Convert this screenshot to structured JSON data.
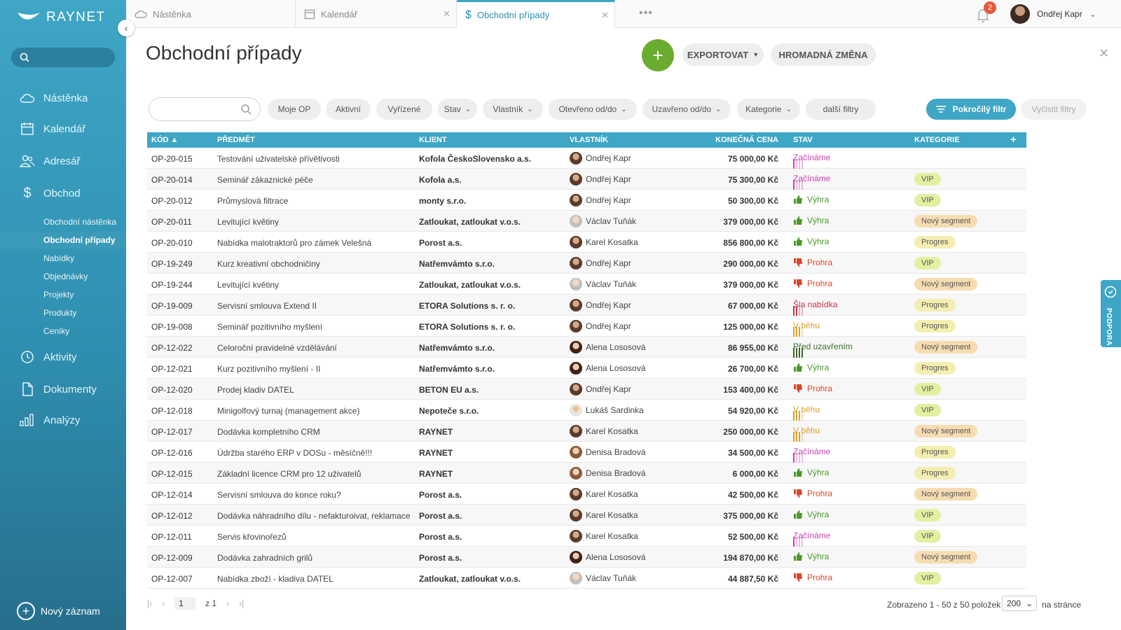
{
  "app": {
    "brand": "RAYNET"
  },
  "sidebar": {
    "main": [
      {
        "label": "Nástěnka",
        "icon": "cloud-icon"
      },
      {
        "label": "Kalendář",
        "icon": "calendar-icon"
      },
      {
        "label": "Adresář",
        "icon": "contacts-icon"
      },
      {
        "label": "Obchod",
        "icon": "dollar-icon"
      }
    ],
    "sub": [
      {
        "label": "Obchodní nástěnka",
        "active": false
      },
      {
        "label": "Obchodní případy",
        "active": true
      },
      {
        "label": "Nabídky",
        "active": false
      },
      {
        "label": "Objednávky",
        "active": false
      },
      {
        "label": "Projekty",
        "active": false
      },
      {
        "label": "Produkty",
        "active": false
      },
      {
        "label": "Ceníky",
        "active": false
      }
    ],
    "main2": [
      {
        "label": "Aktivity",
        "icon": "clock-icon"
      },
      {
        "label": "Dokumenty",
        "icon": "document-icon"
      },
      {
        "label": "Analýzy",
        "icon": "bar-chart-icon"
      }
    ],
    "new_record": "Nový záznam"
  },
  "tabs": [
    {
      "label": "Nástěnka"
    },
    {
      "label": "Kalendář"
    },
    {
      "label": "Obchodní případy",
      "active": true
    }
  ],
  "notifications": {
    "count": "2"
  },
  "user": {
    "name": "Ondřej Kapr"
  },
  "page": {
    "title": "Obchodní případy",
    "export_label": "EXPORTOVAT",
    "bulk_label": "HROMADNÁ ZMĚNA"
  },
  "filters": {
    "search_placeholder": "",
    "chips": [
      "Moje OP",
      "Aktivní",
      "Vyřízené",
      "Stav",
      "Vlastník",
      "Otevřeno od/do",
      "Uzavřeno od/do",
      "Kategorie",
      "další filtry"
    ],
    "advanced": "Pokročilý filtr",
    "clear": "Vyčistit filtry"
  },
  "table": {
    "columns": [
      "KÓD",
      "PŘEDMĚT",
      "KLIENT",
      "VLASTNÍK",
      "KONEČNÁ CENA",
      "STAV",
      "KATEGORIE"
    ],
    "rows": [
      {
        "kod": "OP-20-015",
        "predmet": "Testování uživatelské přívětivosti",
        "klient": "Kofola ČeskoSlovensko a.s.",
        "vlastnik": "Ondřej Kapr",
        "cena": "75 000,00 Kč",
        "stav": "Začínáme",
        "kategorie": ""
      },
      {
        "kod": "OP-20-014",
        "predmet": "Seminář zákaznické péče",
        "klient": "Kofola a.s.",
        "vlastnik": "Ondřej Kapr",
        "cena": "75 300,00 Kč",
        "stav": "Začínáme",
        "kategorie": "VIP"
      },
      {
        "kod": "OP-20-012",
        "predmet": "Průmyslová filtrace",
        "klient": "monty s.r.o.",
        "vlastnik": "Ondřej Kapr",
        "cena": "50 300,00 Kč",
        "stav": "Výhra",
        "kategorie": "VIP"
      },
      {
        "kod": "OP-20-011",
        "predmet": "Levitující květiny",
        "klient": "Zatloukat, zatloukat v.o.s.",
        "vlastnik": "Václav Tuňák",
        "cena": "379 000,00 Kč",
        "stav": "Výhra",
        "kategorie": "Nový segment"
      },
      {
        "kod": "OP-20-010",
        "predmet": "Nabídka malotraktorů pro zámek Velešná",
        "klient": "Porost a.s.",
        "vlastnik": "Karel Kosatka",
        "cena": "856 800,00 Kč",
        "stav": "Výhra",
        "kategorie": "Progres"
      },
      {
        "kod": "OP-19-249",
        "predmet": "Kurz kreativní obchodničiny",
        "klient": "Natřemvámto s.r.o.",
        "vlastnik": "Ondřej Kapr",
        "cena": "290 000,00 Kč",
        "stav": "Prohra",
        "kategorie": "VIP"
      },
      {
        "kod": "OP-19-244",
        "predmet": "Levitující květiny",
        "klient": "Zatloukat, zatloukat v.o.s.",
        "vlastnik": "Václav Tuňák",
        "cena": "379 000,00 Kč",
        "stav": "Prohra",
        "kategorie": "Nový segment"
      },
      {
        "kod": "OP-19-009",
        "predmet": "Servisní smlouva Extend II",
        "klient": "ETORA Solutions s. r. o.",
        "vlastnik": "Ondřej Kapr",
        "cena": "67 000,00 Kč",
        "stav": "Šla nabídka",
        "kategorie": "Progres"
      },
      {
        "kod": "OP-19-008",
        "predmet": "Seminář pozitivního myšlení",
        "klient": "ETORA Solutions s. r. o.",
        "vlastnik": "Ondřej Kapr",
        "cena": "125 000,00 Kč",
        "stav": "V běhu",
        "kategorie": "Progres"
      },
      {
        "kod": "OP-12-022",
        "predmet": "Celoroční pravidelné vzdělávání",
        "klient": "Natřemvámto s.r.o.",
        "vlastnik": "Alena Lososová",
        "cena": "86 955,00 Kč",
        "stav": "Před uzavřením",
        "kategorie": "Nový segment"
      },
      {
        "kod": "OP-12-021",
        "predmet": "Kurz pozitivního myšlení - II",
        "klient": "Natřemvámto s.r.o.",
        "vlastnik": "Alena Lososová",
        "cena": "26 700,00 Kč",
        "stav": "Výhra",
        "kategorie": "Progres"
      },
      {
        "kod": "OP-12-020",
        "predmet": "Prodej kladiv DATEL",
        "klient": "BETON EU a.s.",
        "vlastnik": "Ondřej Kapr",
        "cena": "153 400,00 Kč",
        "stav": "Prohra",
        "kategorie": "VIP"
      },
      {
        "kod": "OP-12-018",
        "predmet": "Minigolfový turnaj (management akce)",
        "klient": "Nepoteče s.r.o.",
        "vlastnik": "Lukáš Sardinka",
        "cena": "54 920,00 Kč",
        "stav": "V běhu",
        "kategorie": "VIP"
      },
      {
        "kod": "OP-12-017",
        "predmet": "Dodávka kompletního CRM",
        "klient": "RAYNET",
        "vlastnik": "Karel Kosatka",
        "cena": "250 000,00 Kč",
        "stav": "V běhu",
        "kategorie": "Nový segment"
      },
      {
        "kod": "OP-12-016",
        "predmet": "Údržba starého ERP v DOSu - měsíčně!!!",
        "klient": "RAYNET",
        "vlastnik": "Denisa Bradová",
        "cena": "34 500,00 Kč",
        "stav": "Začínáme",
        "kategorie": "Progres"
      },
      {
        "kod": "OP-12-015",
        "predmet": "Základní licence CRM pro 12 uživatelů",
        "klient": "RAYNET",
        "vlastnik": "Denisa Bradová",
        "cena": "6 000,00 Kč",
        "stav": "Výhra",
        "kategorie": "Progres"
      },
      {
        "kod": "OP-12-014",
        "predmet": "Servisní smlouva do konce roku?",
        "klient": "Porost a.s.",
        "vlastnik": "Karel Kosatka",
        "cena": "42 500,00 Kč",
        "stav": "Prohra",
        "kategorie": "Nový segment"
      },
      {
        "kod": "OP-12-012",
        "predmet": "Dodávka náhradního dílu - nefakturoivat, reklamace",
        "klient": "Porost a.s.",
        "vlastnik": "Karel Kosatka",
        "cena": "375 000,00 Kč",
        "stav": "Výhra",
        "kategorie": "VIP"
      },
      {
        "kod": "OP-12-011",
        "predmet": "Servis křovinořezů",
        "klient": "Porost a.s.",
        "vlastnik": "Karel Kosatka",
        "cena": "52 500,00 Kč",
        "stav": "Začínáme",
        "kategorie": "VIP"
      },
      {
        "kod": "OP-12-009",
        "predmet": "Dodávka zahradních grilů",
        "klient": "Porost a.s.",
        "vlastnik": "Alena Lososová",
        "cena": "194 870,00 Kč",
        "stav": "Výhra",
        "kategorie": "Nový segment"
      },
      {
        "kod": "OP-12-007",
        "predmet": "Nabídka zboží - kladiva DATEL",
        "klient": "Zatloukat, zatloukat v.o.s.",
        "vlastnik": "Václav Tuňák",
        "cena": "44 887,50 Kč",
        "stav": "Prohra",
        "kategorie": "VIP"
      }
    ]
  },
  "status_colors": {
    "Začínáme": "#cc3fb5",
    "Výhra": "#4a9a2a",
    "Prohra": "#d9472b",
    "Šla nabídka": "#c8354a",
    "V běhu": "#d9a22a",
    "Před uzavřením": "#3c6a2b"
  },
  "pager": {
    "page": "1",
    "of": "z 1",
    "info": "Zobrazeno 1 - 50 z 50 položek",
    "per_page": "200",
    "per_label": "na stránce"
  },
  "support": {
    "label": "PODPORA"
  }
}
